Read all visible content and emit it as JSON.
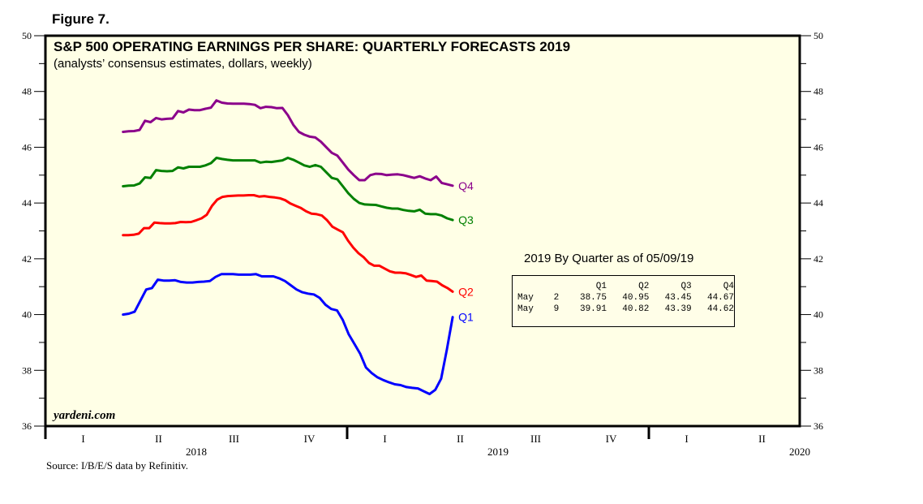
{
  "figure_label": "Figure 7.",
  "chart_data": {
    "type": "line",
    "title": "S&P 500 OPERATING EARNINGS PER SHARE: QUARTERLY FORECASTS 2019",
    "subtitle": "(analysts’ consensus estimates, dollars, weekly)",
    "xlabel": "",
    "ylabel": "",
    "ylim": [
      36,
      50
    ],
    "yticks": [
      36,
      38,
      40,
      42,
      44,
      46,
      48,
      50
    ],
    "ytick_labels": [
      "36",
      "38",
      "40",
      "42",
      "44",
      "46",
      "48",
      "50"
    ],
    "xlim": [
      "2018-01-01",
      "2020-06-30"
    ],
    "x_quarter_labels": [
      {
        "label": "I",
        "year": 2018,
        "quarter": 1
      },
      {
        "label": "II",
        "year": 2018,
        "quarter": 2
      },
      {
        "label": "III",
        "year": 2018,
        "quarter": 3
      },
      {
        "label": "IV",
        "year": 2018,
        "quarter": 4
      },
      {
        "label": "I",
        "year": 2019,
        "quarter": 1
      },
      {
        "label": "II",
        "year": 2019,
        "quarter": 2
      },
      {
        "label": "III",
        "year": 2019,
        "quarter": 3
      },
      {
        "label": "IV",
        "year": 2019,
        "quarter": 4
      },
      {
        "label": "I",
        "year": 2020,
        "quarter": 1
      },
      {
        "label": "II",
        "year": 2020,
        "quarter": 2
      }
    ],
    "x_year_labels": [
      "2018",
      "2019",
      "2020"
    ],
    "grid": false,
    "legend": "inline labels at line ends",
    "x_start_week": "2018-04-05",
    "x_interval": "weekly",
    "series": [
      {
        "name": "Q4",
        "color": "#8b008b",
        "values": [
          46.55,
          46.57,
          46.58,
          46.62,
          46.95,
          46.9,
          47.05,
          47.0,
          47.02,
          47.03,
          47.3,
          47.25,
          47.35,
          47.33,
          47.33,
          47.38,
          47.42,
          47.68,
          47.6,
          47.57,
          47.56,
          47.56,
          47.56,
          47.55,
          47.52,
          47.4,
          47.45,
          47.44,
          47.4,
          47.41,
          47.15,
          46.8,
          46.55,
          46.45,
          46.38,
          46.35,
          46.2,
          46.0,
          45.8,
          45.7,
          45.45,
          45.2,
          45.0,
          44.82,
          44.82,
          45.0,
          45.05,
          45.04,
          45.0,
          45.02,
          45.03,
          45.0,
          44.95,
          44.9,
          44.96,
          44.88,
          44.82,
          44.95,
          44.72,
          44.67,
          44.62
        ]
      },
      {
        "name": "Q3",
        "color": "#008000",
        "values": [
          44.6,
          44.62,
          44.63,
          44.7,
          44.92,
          44.9,
          45.18,
          45.15,
          45.14,
          45.15,
          45.28,
          45.24,
          45.3,
          45.3,
          45.3,
          45.35,
          45.43,
          45.62,
          45.58,
          45.55,
          45.53,
          45.53,
          45.53,
          45.53,
          45.53,
          45.45,
          45.48,
          45.47,
          45.5,
          45.53,
          45.62,
          45.55,
          45.45,
          45.35,
          45.3,
          45.36,
          45.3,
          45.1,
          44.9,
          44.85,
          44.6,
          44.35,
          44.15,
          44.0,
          43.95,
          43.94,
          43.93,
          43.88,
          43.83,
          43.8,
          43.8,
          43.75,
          43.72,
          43.7,
          43.76,
          43.62,
          43.6,
          43.6,
          43.55,
          43.45,
          43.39
        ]
      },
      {
        "name": "Q2",
        "color": "#ff0000",
        "values": [
          42.85,
          42.85,
          42.86,
          42.9,
          43.1,
          43.1,
          43.3,
          43.28,
          43.27,
          43.27,
          43.28,
          43.32,
          43.31,
          43.32,
          43.38,
          43.45,
          43.58,
          43.9,
          44.12,
          44.22,
          44.25,
          44.26,
          44.27,
          44.27,
          44.28,
          44.28,
          44.23,
          44.25,
          44.22,
          44.2,
          44.17,
          44.1,
          43.98,
          43.9,
          43.82,
          43.7,
          43.62,
          43.6,
          43.55,
          43.38,
          43.15,
          43.05,
          42.95,
          42.65,
          42.4,
          42.2,
          42.05,
          41.85,
          41.75,
          41.75,
          41.65,
          41.55,
          41.5,
          41.5,
          41.48,
          41.42,
          41.35,
          41.4,
          41.22,
          41.2,
          41.18,
          41.05,
          40.95,
          40.82
        ]
      },
      {
        "name": "Q1",
        "color": "#0000ff",
        "values": [
          40.0,
          40.03,
          40.1,
          40.5,
          40.9,
          40.95,
          41.25,
          41.22,
          41.22,
          41.23,
          41.17,
          41.15,
          41.15,
          41.17,
          41.18,
          41.2,
          41.35,
          41.45,
          41.45,
          41.45,
          41.43,
          41.43,
          41.43,
          41.45,
          41.37,
          41.37,
          41.37,
          41.3,
          41.2,
          41.05,
          40.9,
          40.8,
          40.75,
          40.72,
          40.6,
          40.35,
          40.2,
          40.15,
          39.8,
          39.3,
          38.95,
          38.6,
          38.1,
          37.9,
          37.75,
          37.65,
          37.57,
          37.5,
          37.47,
          37.4,
          37.37,
          37.35,
          37.25,
          37.15,
          37.3,
          37.7,
          38.75,
          39.91
        ]
      }
    ]
  },
  "inset_table": {
    "title": "2019 By Quarter as of 05/09/19",
    "columns": [
      "Q1",
      "Q2",
      "Q3",
      "Q4"
    ],
    "rows": [
      {
        "month": "May",
        "day": "2",
        "values": [
          "38.75",
          "40.95",
          "43.45",
          "44.67"
        ]
      },
      {
        "month": "May",
        "day": "9",
        "values": [
          "39.91",
          "40.82",
          "43.39",
          "44.62"
        ]
      }
    ]
  },
  "watermark": "yardeni.com",
  "source": "Source: I/B/E/S data by Refinitiv."
}
